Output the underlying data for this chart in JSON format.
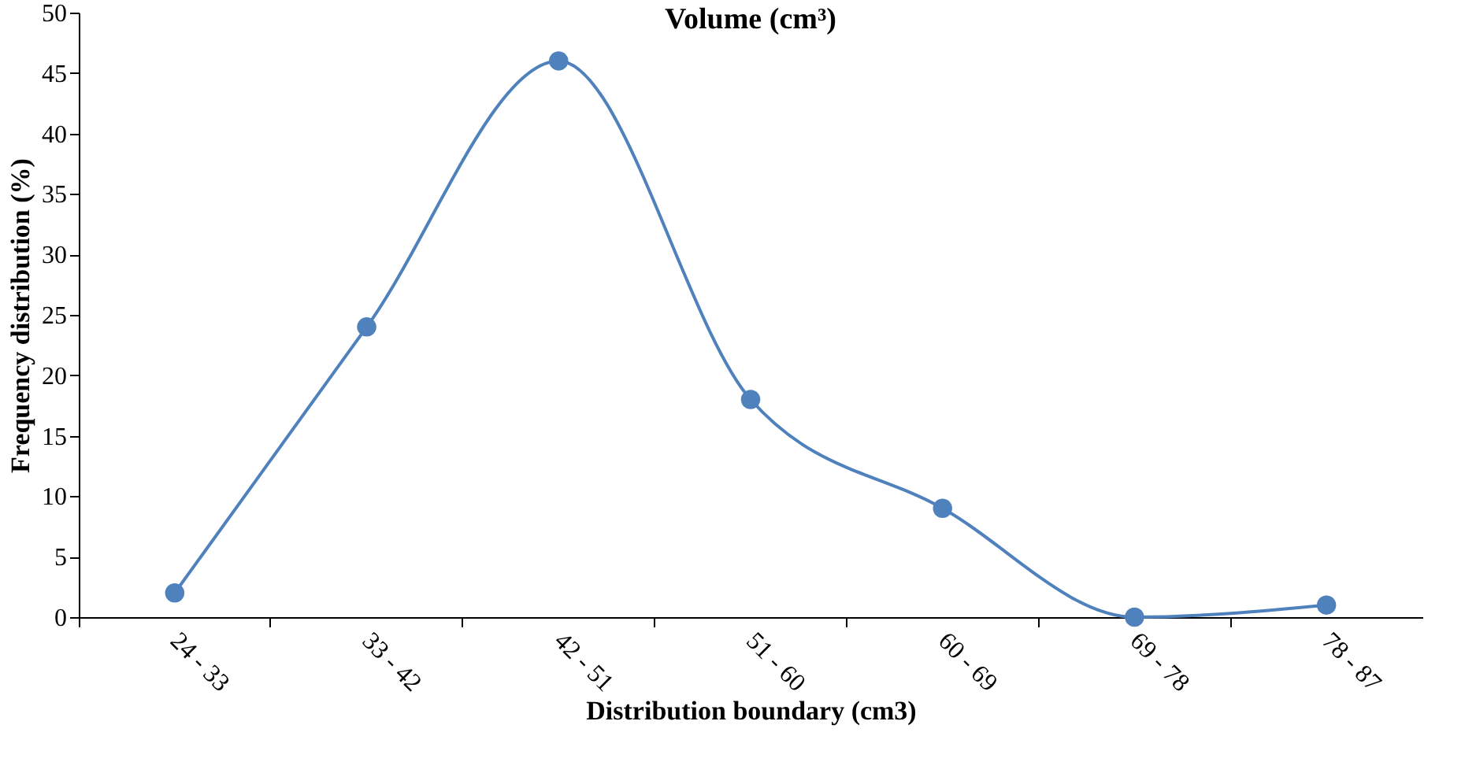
{
  "chart_data": {
    "type": "line",
    "title": "Volume (cm³)",
    "xlabel": "Distribution boundary (cm3)",
    "ylabel": "Frequency distribution (%)",
    "categories": [
      "24 - 33",
      "33 - 42",
      "42 - 51",
      "51 - 60",
      "60 - 69",
      "69 - 78",
      "78 - 87"
    ],
    "series": [
      {
        "color": "#4f81bd",
        "values": [
          2,
          24,
          46,
          18,
          9,
          0,
          1
        ]
      }
    ],
    "ylim": [
      0,
      50
    ],
    "yticks": [
      0,
      5,
      10,
      15,
      20,
      25,
      30,
      35,
      40,
      45,
      50
    ],
    "grid": false,
    "legend": false,
    "marker": "circle",
    "line_style": "solid"
  }
}
